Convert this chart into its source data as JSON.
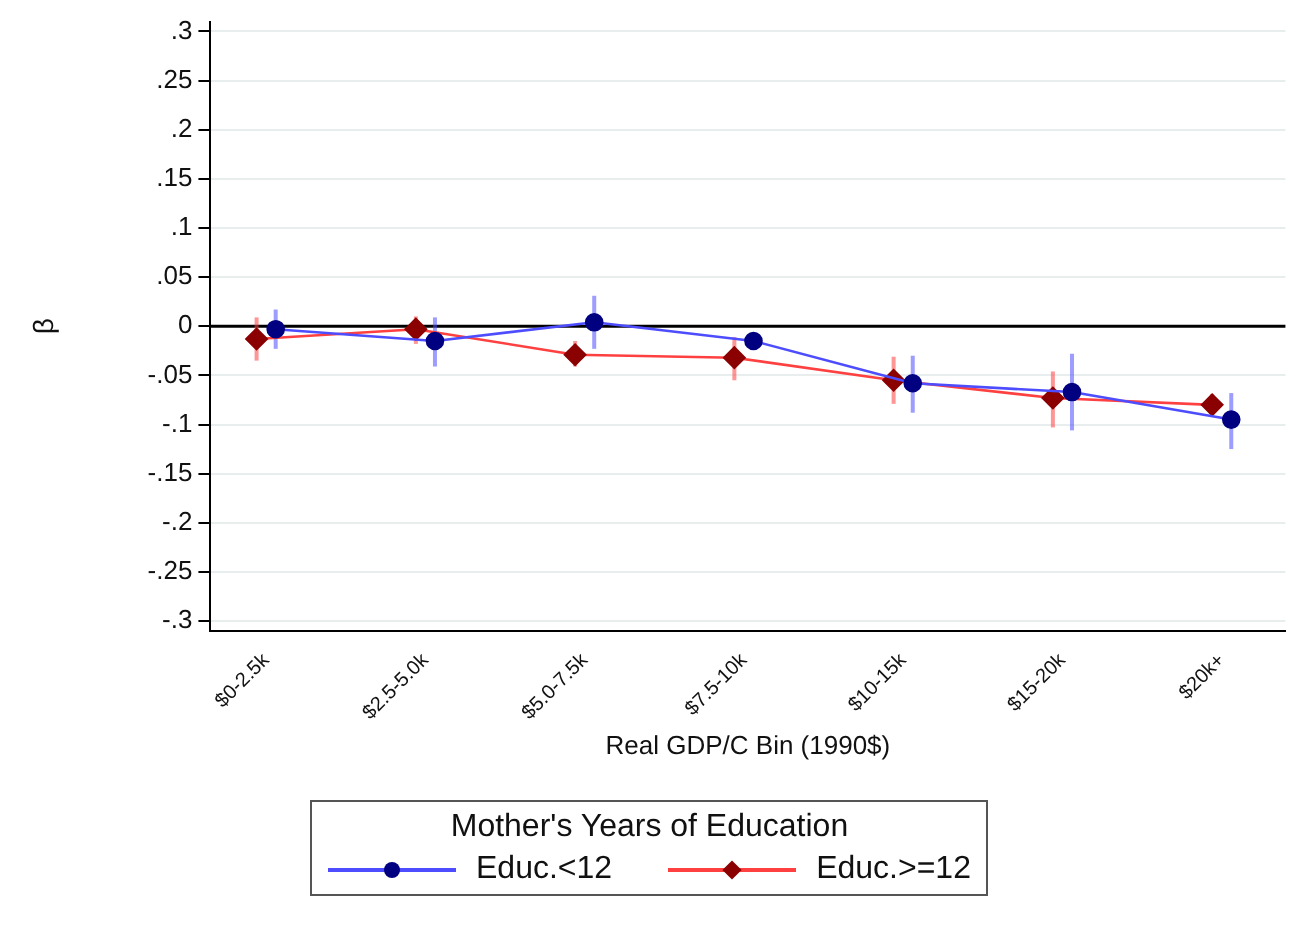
{
  "chart_data": {
    "type": "line",
    "xlabel": "Real GDP/C Bin (1990$)",
    "ylabel": "β",
    "legend_title": "Mother's Years of Education",
    "legend": "bottom",
    "grid": "y",
    "categories": [
      "$0-2.5k",
      "$2.5-5.0k",
      "$5.0-7.5k",
      "$7.5-10k",
      "$10-15k",
      "$15-20k",
      "$20k+"
    ],
    "ylim": [
      -0.31,
      0.31
    ],
    "yticks": [
      {
        "value": 0.3,
        "label": ".3"
      },
      {
        "value": 0.25,
        "label": ".25"
      },
      {
        "value": 0.2,
        "label": ".2"
      },
      {
        "value": 0.15,
        "label": ".15"
      },
      {
        "value": 0.1,
        "label": ".1"
      },
      {
        "value": 0.05,
        "label": ".05"
      },
      {
        "value": 0,
        "label": "0"
      },
      {
        "value": -0.05,
        "label": "-.05"
      },
      {
        "value": -0.1,
        "label": "-.1"
      },
      {
        "value": -0.15,
        "label": "-.15"
      },
      {
        "value": -0.2,
        "label": "-.2"
      },
      {
        "value": -0.25,
        "label": "-.25"
      },
      {
        "value": -0.3,
        "label": "-.3"
      }
    ],
    "ref_lines": [
      {
        "axis": "y",
        "value": 0,
        "color": "#000000"
      }
    ],
    "series": [
      {
        "name": "Educ.<12",
        "color": "#4d4dff",
        "colors": [
          "#000080",
          "#000080",
          "#000080",
          "#000080",
          "#000080",
          "#000080",
          "#000080"
        ],
        "marker": "circle",
        "values": [
          -0.003,
          -0.015,
          0.004,
          -0.015,
          -0.058,
          -0.067,
          -0.095
        ],
        "errors": [
          [
            -0.023,
            0.017
          ],
          [
            -0.041,
            0.009
          ],
          [
            -0.023,
            0.031
          ],
          [
            -0.022,
            -0.008
          ],
          [
            -0.088,
            -0.03
          ],
          [
            -0.106,
            -0.028
          ],
          [
            -0.125,
            -0.068
          ]
        ]
      },
      {
        "name": "Educ.>=12",
        "color": "#ff4040",
        "colors": [
          "#8b0000",
          "#8b0000",
          "#8b0000",
          "#8b0000",
          "#8b0000",
          "#8b0000",
          "#8b0000"
        ],
        "marker": "diamond",
        "values": [
          -0.013,
          -0.003,
          -0.029,
          -0.032,
          -0.055,
          -0.073,
          -0.08
        ],
        "errors": [
          [
            -0.035,
            0.009
          ],
          [
            -0.018,
            0.01
          ],
          [
            -0.041,
            -0.015
          ],
          [
            -0.055,
            -0.011
          ],
          [
            -0.079,
            -0.031
          ],
          [
            -0.103,
            -0.046
          ],
          [
            -0.086,
            -0.069
          ]
        ]
      }
    ]
  }
}
